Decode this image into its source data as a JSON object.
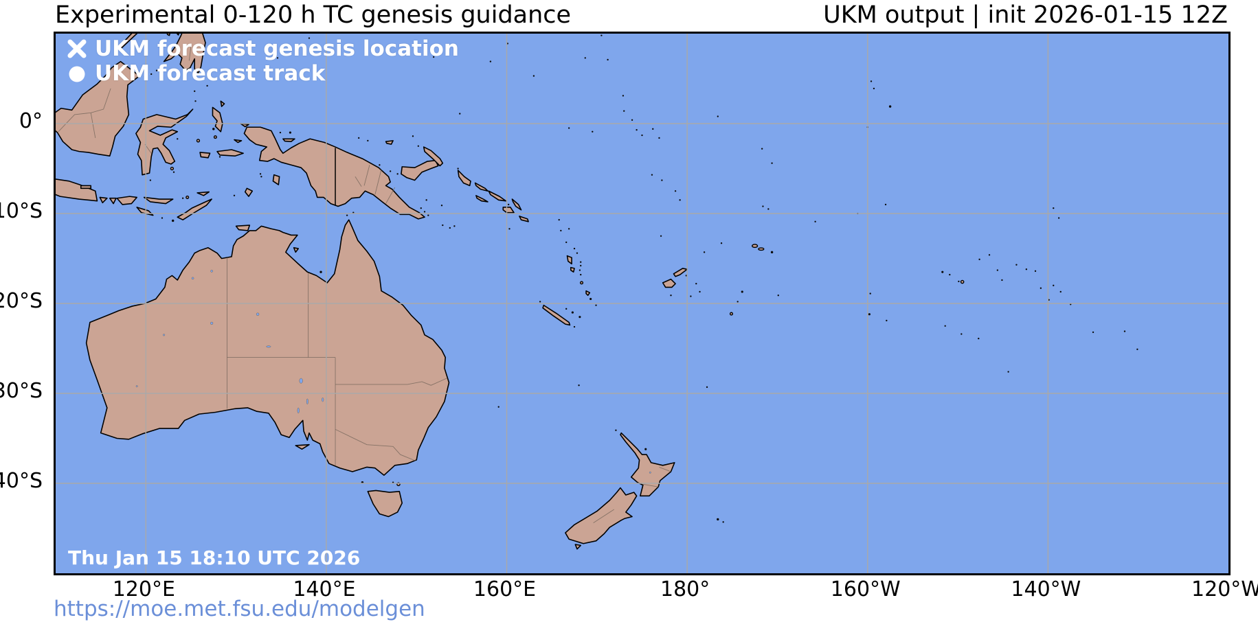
{
  "header": {
    "title_left": "Experimental 0-120 h TC genesis guidance",
    "title_right": "UKM output | init 2026-01-15 12Z"
  },
  "map": {
    "legend": [
      {
        "marker": "x-marker-icon",
        "label": "UKM forecast genesis location"
      },
      {
        "marker": "circle-marker-icon",
        "label": "UKM forecast track"
      }
    ],
    "timestamp": "Thu Jan 15 18:10 UTC 2026",
    "extent": {
      "lon_min_deg_east": 110,
      "lon_max_deg_east": 240,
      "lat_min": -50,
      "lat_max": 10
    },
    "axis": {
      "lat_ticks": [
        {
          "label": "0°",
          "lat": 0
        },
        {
          "label": "10°S",
          "lat": -10
        },
        {
          "label": "20°S",
          "lat": -20
        },
        {
          "label": "30°S",
          "lat": -30
        },
        {
          "label": "40°S",
          "lat": -40
        }
      ],
      "lon_ticks": [
        {
          "label": "120°E",
          "lon": 120
        },
        {
          "label": "140°E",
          "lon": 140
        },
        {
          "label": "160°E",
          "lon": 160
        },
        {
          "label": "180°",
          "lon": 180
        },
        {
          "label": "160°W",
          "lon": 200
        },
        {
          "label": "140°W",
          "lon": 220
        },
        {
          "label": "120°W",
          "lon": 240
        }
      ]
    }
  },
  "footer": {
    "url": "https://moe.met.fsu.edu/modelgen"
  },
  "colors": {
    "ocean": "#7fa6ec",
    "land": "#cba494",
    "coast": "#000000",
    "grid": "#a9a9a9",
    "admin": "#6f6257",
    "legend_text": "#ffffff",
    "url": "#6b8fd8"
  }
}
